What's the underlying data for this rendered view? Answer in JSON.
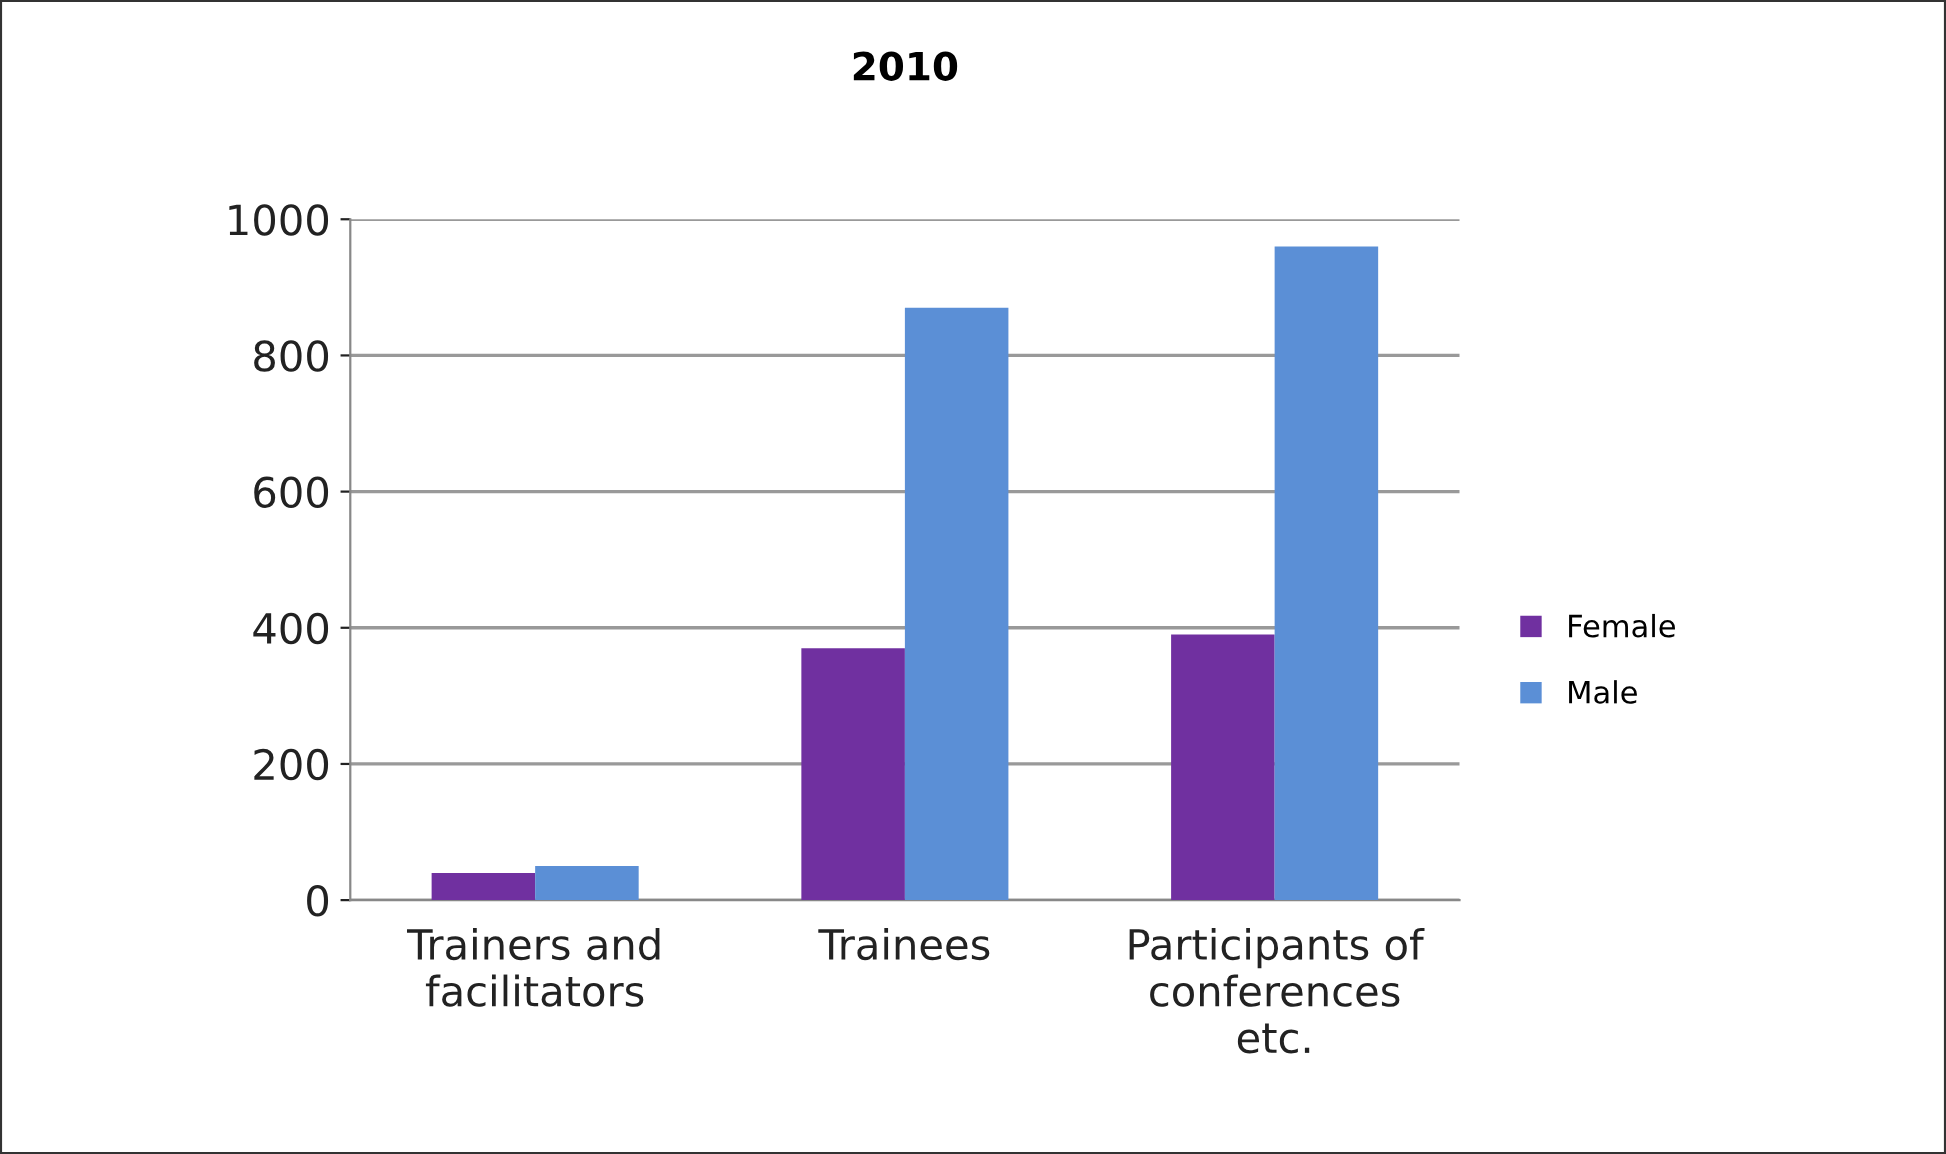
{
  "chart_data": {
    "type": "bar",
    "title": "2010",
    "categories": [
      "Trainers and\nfacilitators",
      "Trainees",
      "Participants of\nconferences\netc."
    ],
    "series": [
      {
        "name": "Female",
        "color": "#7030a0",
        "values": [
          40,
          370,
          390
        ]
      },
      {
        "name": "Male",
        "color": "#5b8fd6",
        "values": [
          50,
          870,
          960
        ]
      }
    ],
    "ylim": [
      0,
      1000
    ],
    "yticks": [
      0,
      200,
      400,
      600,
      800,
      1000
    ],
    "grid": "y",
    "legend": "right"
  }
}
